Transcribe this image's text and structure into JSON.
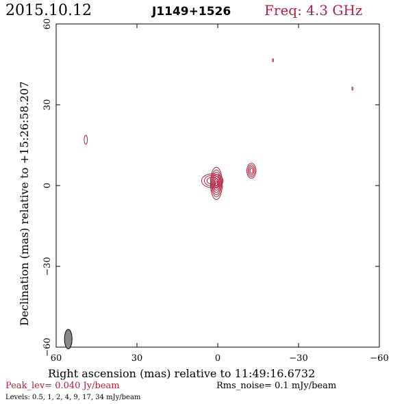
{
  "header": {
    "date": "2015.10.12",
    "source": "J1149+1526",
    "freq": "Freq: 4.3 GHz"
  },
  "footer": {
    "peak": "Peak_lev=  0.040 Jy/beam",
    "rms": "Rms_noise=   0.1 mJy/beam",
    "levels": "Levels: 0.5,    1,    2,    4,    9,   17,   34 mJy/beam"
  },
  "colors": {
    "contour": "#b0213f",
    "beam": "#888888",
    "axes": "#000000"
  },
  "chart_data": {
    "type": "contour",
    "title": "J1149+1526",
    "xlabel": "Right ascension (mas) relative to 11:49:16.6732",
    "ylabel": "Declination (mas) relative to +15:26:58.207",
    "xlim": [
      60,
      -60
    ],
    "ylim": [
      -60,
      60
    ],
    "xticks": [
      60,
      30,
      0,
      -30,
      -60
    ],
    "yticks": [
      60,
      30,
      0,
      -30,
      -60
    ],
    "xtick_labels": [
      "60",
      "30",
      "0",
      "−30",
      "−60"
    ],
    "ytick_labels": [
      "60",
      "30",
      "0",
      "−30",
      "−60"
    ],
    "peak_level_jy_per_beam": 0.04,
    "rms_noise_mjy_per_beam": 0.1,
    "contour_levels_mjy_per_beam": [
      0.5,
      1,
      2,
      4,
      9,
      17,
      34
    ],
    "components": [
      {
        "x": 0.5,
        "y": 0.8,
        "rx": [
          2.2,
          1.9,
          1.6,
          1.3,
          1.0,
          0.7,
          0.4
        ],
        "ry": [
          6.0,
          5.0,
          4.2,
          3.4,
          2.6,
          1.8,
          1.0
        ]
      },
      {
        "x": 2.0,
        "y": 1.8,
        "rx": [
          4.0,
          3.0,
          2.0
        ],
        "ry": [
          2.6,
          2.0,
          1.3
        ]
      },
      {
        "x": -12.5,
        "y": 5.5,
        "rx": [
          1.7,
          1.3,
          0.9,
          0.5
        ],
        "ry": [
          2.8,
          2.2,
          1.6,
          1.0
        ]
      },
      {
        "x": 49.0,
        "y": 17.0,
        "rx": [
          0.6
        ],
        "ry": [
          1.7
        ]
      },
      {
        "x": -20.5,
        "y": 46.5,
        "rx": [
          0.2
        ],
        "ry": [
          0.6
        ]
      },
      {
        "x": -50.0,
        "y": 36.0,
        "rx": [
          0.2
        ],
        "ry": [
          0.6
        ]
      }
    ],
    "beam": {
      "x": 55.5,
      "y": -57.0,
      "major": 3.6,
      "minor": 1.4,
      "pa_deg": 0
    }
  }
}
